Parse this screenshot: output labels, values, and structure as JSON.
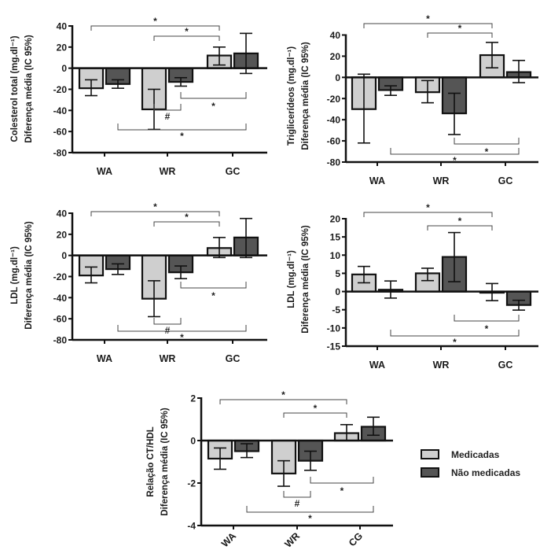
{
  "legend": {
    "items": [
      {
        "label": "Medicadas",
        "color": "#cfcfcf"
      },
      {
        "label": "Não medicadas",
        "color": "#555555"
      }
    ]
  },
  "chart_data": [
    {
      "id": "ct",
      "type": "bar",
      "title": "",
      "ylabel_line1": "Colesterol total (mg.dl⁻¹)",
      "ylabel_line2": "Diferença média (IC 95%)",
      "xlabel": "",
      "categories": [
        "WA",
        "WR",
        "GC"
      ],
      "ylim": [
        -80,
        40
      ],
      "yticks": [
        40,
        20,
        0,
        -20,
        -40,
        -60,
        -80
      ],
      "series": [
        {
          "name": "Medicadas",
          "values": [
            -19,
            -39,
            12
          ],
          "ci_low": [
            -26,
            -58,
            3
          ],
          "ci_high": [
            -11,
            -20,
            20
          ]
        },
        {
          "name": "Não medicadas",
          "values": [
            -15,
            -13,
            14
          ],
          "ci_low": [
            -19,
            -17,
            -5
          ],
          "ci_high": [
            -11,
            -9,
            33
          ]
        }
      ],
      "annotations": [
        {
          "from": "WA",
          "to": "GC.Medicadas",
          "label": "*",
          "position": "top"
        },
        {
          "from": "WR",
          "to": "GC.Medicadas",
          "label": "*",
          "position": "top"
        },
        {
          "from": "WR.Não medicadas",
          "to": "GC.Não medicadas",
          "label": "*",
          "position": "bottom"
        },
        {
          "from": "WR.Medicadas",
          "to": "WR.Não medicadas",
          "label": "#",
          "position": "bottom"
        },
        {
          "from": "WA.Não medicadas",
          "to": "GC.Não medicadas",
          "label": "*",
          "position": "bottom"
        }
      ]
    },
    {
      "id": "tg",
      "type": "bar",
      "title": "",
      "ylabel_line1": "Triglicerídeos (mg.dl⁻¹)",
      "ylabel_line2": "Diferença média (IC 95%)",
      "xlabel": "",
      "categories": [
        "WA",
        "WR",
        "GC"
      ],
      "ylim": [
        -80,
        40
      ],
      "yticks": [
        40,
        20,
        0,
        -20,
        -40,
        -60,
        -80
      ],
      "series": [
        {
          "name": "Medicadas",
          "values": [
            -30,
            -14,
            21
          ],
          "ci_low": [
            -62,
            -24,
            9
          ],
          "ci_high": [
            3,
            -3,
            33
          ]
        },
        {
          "name": "Não medicadas",
          "values": [
            -12,
            -34,
            5
          ],
          "ci_low": [
            -17,
            -54,
            -5
          ],
          "ci_high": [
            -8,
            -15,
            16
          ]
        }
      ],
      "annotations": [
        {
          "from": "WA",
          "to": "GC.Medicadas",
          "label": "*",
          "position": "top"
        },
        {
          "from": "WR",
          "to": "GC.Medicadas",
          "label": "*",
          "position": "top"
        },
        {
          "from": "WR.Não medicadas",
          "to": "GC.Não medicadas",
          "label": "*",
          "position": "bottom"
        },
        {
          "from": "WA.Não medicadas",
          "to": "GC.Não medicadas",
          "label": "*",
          "position": "bottom"
        }
      ]
    },
    {
      "id": "ldl",
      "type": "bar",
      "title": "",
      "ylabel_line1": "LDL (mg.dl⁻¹)",
      "ylabel_line2": "Diferença média (IC 95%)",
      "xlabel": "",
      "categories": [
        "WA",
        "WR",
        "GC"
      ],
      "ylim": [
        -80,
        40
      ],
      "yticks": [
        40,
        20,
        0,
        -20,
        -40,
        -60,
        -80
      ],
      "series": [
        {
          "name": "Medicadas",
          "values": [
            -19,
            -41,
            7
          ],
          "ci_low": [
            -26,
            -58,
            -2
          ],
          "ci_high": [
            -11,
            -24,
            17
          ]
        },
        {
          "name": "Não medicadas",
          "values": [
            -13,
            -16,
            17
          ],
          "ci_low": [
            -18,
            -22,
            -2
          ],
          "ci_high": [
            -8,
            -10,
            35
          ]
        }
      ],
      "annotations": [
        {
          "from": "WA",
          "to": "GC.Medicadas",
          "label": "*",
          "position": "top"
        },
        {
          "from": "WR",
          "to": "GC.Medicadas",
          "label": "*",
          "position": "top"
        },
        {
          "from": "WR.Não medicadas",
          "to": "GC.Não medicadas",
          "label": "*",
          "position": "bottom"
        },
        {
          "from": "WR.Medicadas",
          "to": "WR.Não medicadas",
          "label": "#",
          "position": "bottom"
        },
        {
          "from": "WA.Não medicadas",
          "to": "GC.Não medicadas",
          "label": "*",
          "position": "bottom"
        }
      ]
    },
    {
      "id": "ldl2",
      "type": "bar",
      "title": "",
      "ylabel_line1": "LDL (mg.dl⁻¹)",
      "ylabel_line2": "Diferença média (IC 95%)",
      "xlabel": "",
      "categories": [
        "WA",
        "WR",
        "GC"
      ],
      "ylim": [
        -15,
        20
      ],
      "yticks": [
        20,
        15,
        10,
        5,
        0,
        -5,
        -10,
        -15
      ],
      "series": [
        {
          "name": "Medicadas",
          "values": [
            4.7,
            5.0,
            -0.1
          ],
          "ci_low": [
            2.4,
            3.0,
            -2.5
          ],
          "ci_high": [
            6.9,
            6.4,
            2.2
          ]
        },
        {
          "name": "Não medicadas",
          "values": [
            0.5,
            9.5,
            -3.7
          ],
          "ci_low": [
            -1.8,
            2.7,
            -5.1
          ],
          "ci_high": [
            2.9,
            16.2,
            -2.4
          ]
        }
      ],
      "annotations": [
        {
          "from": "WA",
          "to": "GC.Medicadas",
          "label": "*",
          "position": "top"
        },
        {
          "from": "WR",
          "to": "GC.Medicadas",
          "label": "*",
          "position": "top"
        },
        {
          "from": "WR.Não medicadas",
          "to": "GC.Não medicadas",
          "label": "*",
          "position": "bottom"
        },
        {
          "from": "WA.Não medicadas",
          "to": "GC.Não medicadas",
          "label": "*",
          "position": "bottom"
        }
      ]
    },
    {
      "id": "cthdl",
      "type": "bar",
      "title": "",
      "ylabel_line1": "Relação CT/HDL",
      "ylabel_line2": "Diferença média (IC 95%)",
      "xlabel": "",
      "categories": [
        "WA",
        "WR",
        "CG"
      ],
      "ylim": [
        -4,
        2
      ],
      "yticks": [
        2,
        0,
        -2,
        -4
      ],
      "series": [
        {
          "name": "Medicadas",
          "values": [
            -0.85,
            -1.55,
            0.35
          ],
          "ci_low": [
            -1.35,
            -2.15,
            0.0
          ],
          "ci_high": [
            -0.35,
            -0.95,
            0.75
          ]
        },
        {
          "name": "Não medicadas",
          "values": [
            -0.5,
            -0.95,
            0.65
          ],
          "ci_low": [
            -0.8,
            -1.4,
            0.25
          ],
          "ci_high": [
            -0.15,
            -0.5,
            1.1
          ]
        }
      ],
      "annotations": [
        {
          "from": "WA",
          "to": "CG.Medicadas",
          "label": "*",
          "position": "top"
        },
        {
          "from": "WR",
          "to": "CG.Medicadas",
          "label": "*",
          "position": "top"
        },
        {
          "from": "WR.Não medicadas",
          "to": "CG.Não medicadas",
          "label": "*",
          "position": "bottom"
        },
        {
          "from": "WR.Medicadas",
          "to": "WR.Não medicadas",
          "label": "#",
          "position": "bottom"
        },
        {
          "from": "WA.Não medicadas",
          "to": "CG.Não medicadas",
          "label": "*",
          "position": "bottom"
        }
      ]
    }
  ]
}
